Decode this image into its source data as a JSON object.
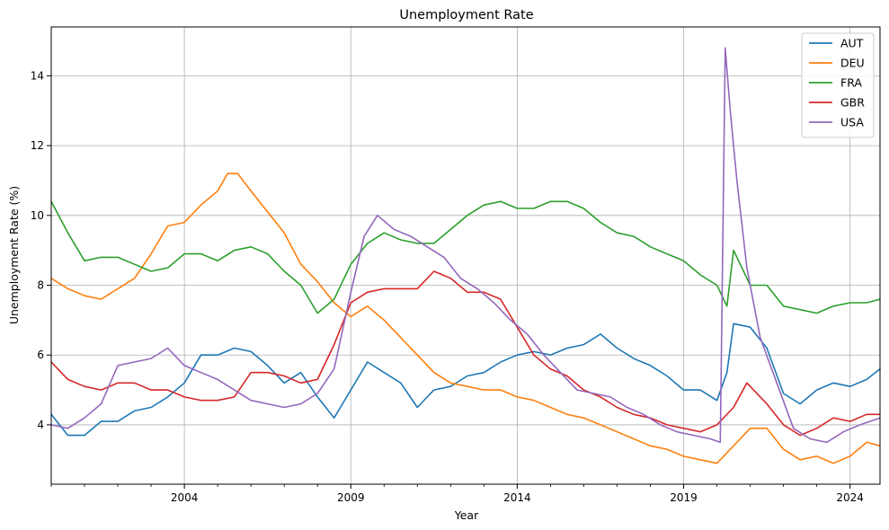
{
  "chart_data": {
    "type": "line",
    "title": "Unemployment Rate",
    "xlabel": "Year",
    "ylabel": "Unemployment Rate (%)",
    "xlim": [
      2000.0,
      2024.9
    ],
    "ylim": [
      2.3,
      15.4
    ],
    "x_ticks": [
      2004,
      2009,
      2014,
      2019,
      2024
    ],
    "x_tick_labels": [
      "2004",
      "2009",
      "2014",
      "2019",
      "2024"
    ],
    "y_ticks": [
      4,
      6,
      8,
      10,
      12,
      14
    ],
    "y_tick_labels": [
      "4",
      "6",
      "8",
      "10",
      "12",
      "14"
    ],
    "grid": true,
    "legend_position": "top-right",
    "series": [
      {
        "name": "AUT",
        "color": "#1f77b4",
        "x": [
          2000,
          2000.5,
          2001,
          2001.5,
          2002,
          2002.5,
          2003,
          2003.5,
          2004,
          2004.5,
          2005,
          2005.5,
          2006,
          2006.5,
          2007,
          2007.5,
          2008,
          2008.5,
          2009,
          2009.5,
          2010,
          2010.5,
          2011,
          2011.5,
          2012,
          2012.5,
          2013,
          2013.5,
          2014,
          2014.5,
          2015,
          2015.5,
          2016,
          2016.5,
          2017,
          2017.5,
          2018,
          2018.5,
          2019,
          2019.5,
          2020,
          2020.3,
          2020.5,
          2021,
          2021.5,
          2022,
          2022.5,
          2023,
          2023.5,
          2024,
          2024.5,
          2024.9
        ],
        "y": [
          4.3,
          3.7,
          3.7,
          4.1,
          4.1,
          4.4,
          4.5,
          4.8,
          5.2,
          6.0,
          6.0,
          6.2,
          6.1,
          5.7,
          5.2,
          5.5,
          4.8,
          4.2,
          5.0,
          5.8,
          5.5,
          5.2,
          4.5,
          5.0,
          5.1,
          5.4,
          5.5,
          5.8,
          6.0,
          6.1,
          6.0,
          6.2,
          6.3,
          6.6,
          6.2,
          5.9,
          5.7,
          5.4,
          5.0,
          5.0,
          4.7,
          5.5,
          6.9,
          6.8,
          6.2,
          4.9,
          4.6,
          5.0,
          5.2,
          5.1,
          5.3,
          5.6
        ]
      },
      {
        "name": "DEU",
        "color": "#ff7f0e",
        "x": [
          2000,
          2000.5,
          2001,
          2001.5,
          2002,
          2002.5,
          2003,
          2003.5,
          2004,
          2004.5,
          2005,
          2005.3,
          2005.6,
          2006,
          2006.5,
          2007,
          2007.5,
          2008,
          2008.5,
          2009,
          2009.5,
          2010,
          2010.5,
          2011,
          2011.5,
          2012,
          2012.5,
          2013,
          2013.5,
          2014,
          2014.5,
          2015,
          2015.5,
          2016,
          2016.5,
          2017,
          2017.5,
          2018,
          2018.5,
          2019,
          2019.5,
          2020,
          2020.5,
          2021,
          2021.5,
          2022,
          2022.5,
          2023,
          2023.5,
          2024,
          2024.5,
          2024.9
        ],
        "y": [
          8.2,
          7.9,
          7.7,
          7.6,
          7.9,
          8.2,
          8.9,
          9.7,
          9.8,
          10.3,
          10.7,
          11.2,
          11.2,
          10.7,
          10.1,
          9.5,
          8.6,
          8.1,
          7.5,
          7.1,
          7.4,
          7.0,
          6.5,
          6.0,
          5.5,
          5.2,
          5.1,
          5.0,
          5.0,
          4.8,
          4.7,
          4.5,
          4.3,
          4.2,
          4.0,
          3.8,
          3.6,
          3.4,
          3.3,
          3.1,
          3.0,
          2.9,
          3.4,
          3.9,
          3.9,
          3.3,
          3.0,
          3.1,
          2.9,
          3.1,
          3.5,
          3.4
        ]
      },
      {
        "name": "FRA",
        "color": "#2ca02c",
        "x": [
          2000,
          2000.5,
          2001,
          2001.5,
          2002,
          2002.5,
          2003,
          2003.5,
          2004,
          2004.5,
          2005,
          2005.5,
          2006,
          2006.5,
          2007,
          2007.5,
          2008,
          2008.5,
          2009,
          2009.5,
          2010,
          2010.5,
          2011,
          2011.5,
          2012,
          2012.5,
          2013,
          2013.5,
          2014,
          2014.5,
          2015,
          2015.5,
          2016,
          2016.5,
          2017,
          2017.5,
          2018,
          2018.5,
          2019,
          2019.5,
          2020,
          2020.3,
          2020.5,
          2021,
          2021.5,
          2022,
          2022.5,
          2023,
          2023.5,
          2024,
          2024.5,
          2024.9
        ],
        "y": [
          10.4,
          9.5,
          8.7,
          8.8,
          8.8,
          8.6,
          8.4,
          8.5,
          8.9,
          8.9,
          8.7,
          9.0,
          9.1,
          8.9,
          8.4,
          8.0,
          7.2,
          7.6,
          8.6,
          9.2,
          9.5,
          9.3,
          9.2,
          9.2,
          9.6,
          10.0,
          10.3,
          10.4,
          10.2,
          10.2,
          10.4,
          10.4,
          10.2,
          9.8,
          9.5,
          9.4,
          9.1,
          8.9,
          8.7,
          8.3,
          8.0,
          7.4,
          9.0,
          8.0,
          8.0,
          7.4,
          7.3,
          7.2,
          7.4,
          7.5,
          7.5,
          7.6
        ]
      },
      {
        "name": "GBR",
        "color": "#d62728",
        "x": [
          2000,
          2000.5,
          2001,
          2001.5,
          2002,
          2002.5,
          2003,
          2003.5,
          2004,
          2004.5,
          2005,
          2005.5,
          2006,
          2006.5,
          2007,
          2007.5,
          2008,
          2008.5,
          2009,
          2009.5,
          2010,
          2010.5,
          2011,
          2011.5,
          2012,
          2012.5,
          2013,
          2013.5,
          2014,
          2014.5,
          2015,
          2015.5,
          2016,
          2016.5,
          2017,
          2017.5,
          2018,
          2018.5,
          2019,
          2019.5,
          2020,
          2020.5,
          2020.9,
          2021.5,
          2022,
          2022.5,
          2023,
          2023.5,
          2024,
          2024.5,
          2024.9
        ],
        "y": [
          5.8,
          5.3,
          5.1,
          5.0,
          5.2,
          5.2,
          5.0,
          5.0,
          4.8,
          4.7,
          4.7,
          4.8,
          5.5,
          5.5,
          5.4,
          5.2,
          5.3,
          6.3,
          7.5,
          7.8,
          7.9,
          7.9,
          7.9,
          8.4,
          8.2,
          7.8,
          7.8,
          7.6,
          6.8,
          6.0,
          5.6,
          5.4,
          5.0,
          4.8,
          4.5,
          4.3,
          4.2,
          4.0,
          3.9,
          3.8,
          4.0,
          4.5,
          5.2,
          4.6,
          4.0,
          3.7,
          3.9,
          4.2,
          4.1,
          4.3,
          4.3
        ]
      },
      {
        "name": "USA",
        "color": "#9467bd",
        "x": [
          2000,
          2000.5,
          2001,
          2001.5,
          2002,
          2002.5,
          2003,
          2003.5,
          2004,
          2004.5,
          2005,
          2005.5,
          2006,
          2006.5,
          2007,
          2007.5,
          2008,
          2008.5,
          2009,
          2009.4,
          2009.8,
          2010.3,
          2010.8,
          2011.3,
          2011.8,
          2012.3,
          2012.8,
          2013.3,
          2013.8,
          2014.3,
          2014.8,
          2015.3,
          2015.8,
          2016.3,
          2016.8,
          2017.3,
          2017.8,
          2018.3,
          2018.8,
          2019.3,
          2019.8,
          2020.1,
          2020.25,
          2020.4,
          2020.6,
          2020.9,
          2021.3,
          2021.8,
          2022.3,
          2022.8,
          2023.3,
          2023.8,
          2024.3,
          2024.9
        ],
        "y": [
          4.0,
          3.9,
          4.2,
          4.6,
          5.7,
          5.8,
          5.9,
          6.2,
          5.7,
          5.5,
          5.3,
          5.0,
          4.7,
          4.6,
          4.5,
          4.6,
          4.9,
          5.6,
          7.8,
          9.4,
          10.0,
          9.6,
          9.4,
          9.1,
          8.8,
          8.2,
          7.9,
          7.5,
          7.0,
          6.6,
          6.0,
          5.5,
          5.0,
          4.9,
          4.8,
          4.5,
          4.3,
          4.0,
          3.8,
          3.7,
          3.6,
          3.5,
          14.8,
          13.0,
          11.0,
          8.5,
          6.5,
          5.2,
          3.9,
          3.6,
          3.5,
          3.8,
          4.0,
          4.2
        ]
      }
    ]
  }
}
